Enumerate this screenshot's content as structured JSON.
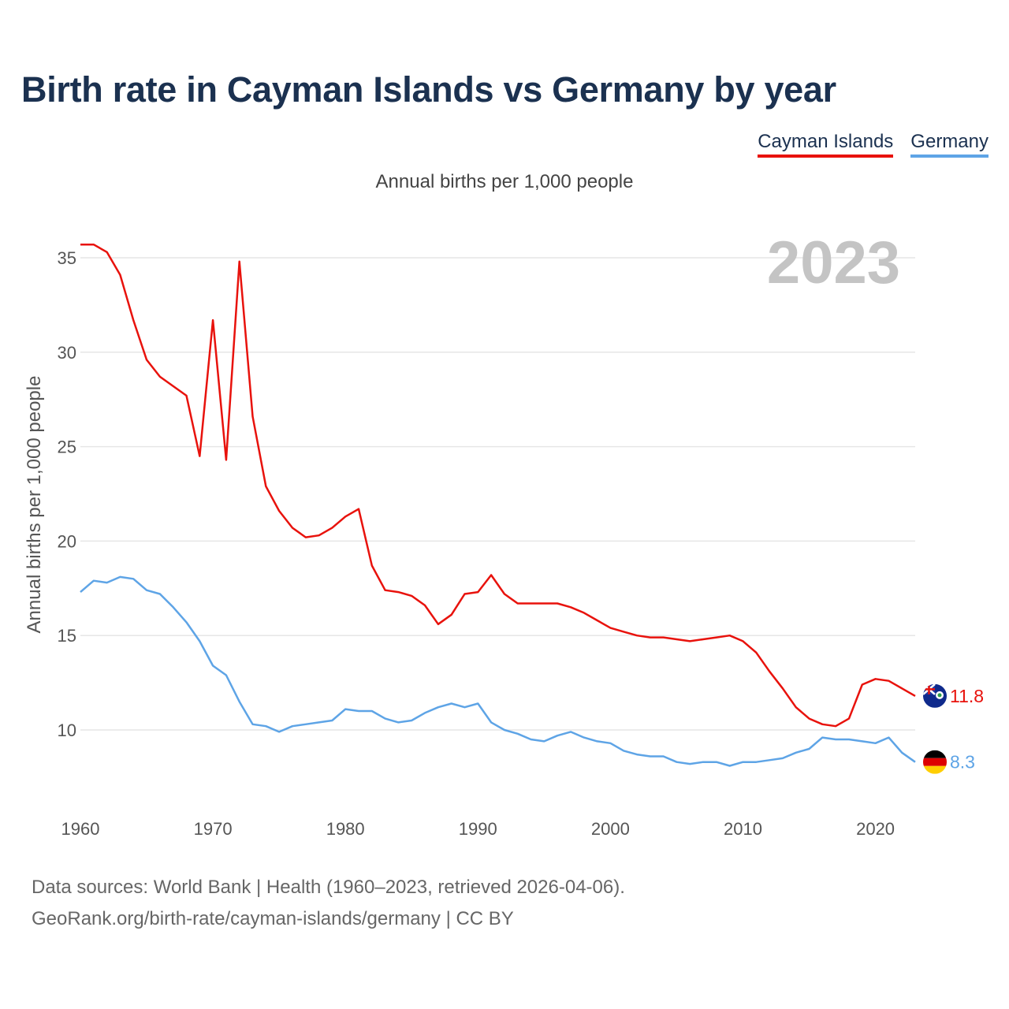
{
  "title": "Birth rate in Cayman Islands vs Germany by year",
  "subtitle": "Annual births per 1,000 people",
  "year_display": "2023",
  "legend": [
    {
      "label": "Cayman Islands",
      "color": "#e8120c"
    },
    {
      "label": "Germany",
      "color": "#5ea4e6"
    }
  ],
  "footer": {
    "line1": "Data sources: World Bank | Health (1960–2023, retrieved 2026-04-06).",
    "line2": "GeoRank.org/birth-rate/cayman-islands/germany | CC BY"
  },
  "chart_data": {
    "type": "line",
    "title": "Birth rate in Cayman Islands vs Germany by year",
    "ylabel": "Annual births per 1,000 people",
    "xlabel": "",
    "xlim": [
      1960,
      2023
    ],
    "ylim": [
      7,
      37
    ],
    "yticks": [
      10,
      15,
      20,
      25,
      30,
      35
    ],
    "xticks": [
      1960,
      1970,
      1980,
      1990,
      2000,
      2010,
      2020
    ],
    "grid": true,
    "x": [
      1960,
      1961,
      1962,
      1963,
      1964,
      1965,
      1966,
      1967,
      1968,
      1969,
      1970,
      1971,
      1972,
      1973,
      1974,
      1975,
      1976,
      1977,
      1978,
      1979,
      1980,
      1981,
      1982,
      1983,
      1984,
      1985,
      1986,
      1987,
      1988,
      1989,
      1990,
      1991,
      1992,
      1993,
      1994,
      1995,
      1996,
      1997,
      1998,
      1999,
      2000,
      2001,
      2002,
      2003,
      2004,
      2005,
      2006,
      2007,
      2008,
      2009,
      2010,
      2011,
      2012,
      2013,
      2014,
      2015,
      2016,
      2017,
      2018,
      2019,
      2020,
      2021,
      2022,
      2023
    ],
    "series": [
      {
        "name": "Cayman Islands",
        "color": "#e8120c",
        "end_label": "11.8",
        "values": [
          35.7,
          35.7,
          35.3,
          34.1,
          31.7,
          29.6,
          28.7,
          28.2,
          27.7,
          24.5,
          31.7,
          24.3,
          34.8,
          26.6,
          22.9,
          21.6,
          20.7,
          20.2,
          20.3,
          20.7,
          21.3,
          21.7,
          18.7,
          17.4,
          17.3,
          17.1,
          16.6,
          15.6,
          16.1,
          17.2,
          17.3,
          18.2,
          17.2,
          16.7,
          16.7,
          16.7,
          16.7,
          16.5,
          16.2,
          15.8,
          15.4,
          15.2,
          15.0,
          14.9,
          14.9,
          14.8,
          14.7,
          14.8,
          14.9,
          15.0,
          14.7,
          14.1,
          13.1,
          12.2,
          11.2,
          10.6,
          10.3,
          10.2,
          10.6,
          12.4,
          12.7,
          12.6,
          12.2,
          11.8
        ]
      },
      {
        "name": "Germany",
        "color": "#5ea4e6",
        "end_label": "8.3",
        "values": [
          17.3,
          17.9,
          17.8,
          18.1,
          18.0,
          17.4,
          17.2,
          16.5,
          15.7,
          14.7,
          13.4,
          12.9,
          11.5,
          10.3,
          10.2,
          9.9,
          10.2,
          10.3,
          10.4,
          10.5,
          11.1,
          11.0,
          11.0,
          10.6,
          10.4,
          10.5,
          10.9,
          11.2,
          11.4,
          11.2,
          11.4,
          10.4,
          10.0,
          9.8,
          9.5,
          9.4,
          9.7,
          9.9,
          9.6,
          9.4,
          9.3,
          8.9,
          8.7,
          8.6,
          8.6,
          8.3,
          8.2,
          8.3,
          8.3,
          8.1,
          8.3,
          8.3,
          8.4,
          8.5,
          8.8,
          9.0,
          9.6,
          9.5,
          9.5,
          9.4,
          9.3,
          9.6,
          8.8,
          8.3
        ]
      }
    ]
  }
}
